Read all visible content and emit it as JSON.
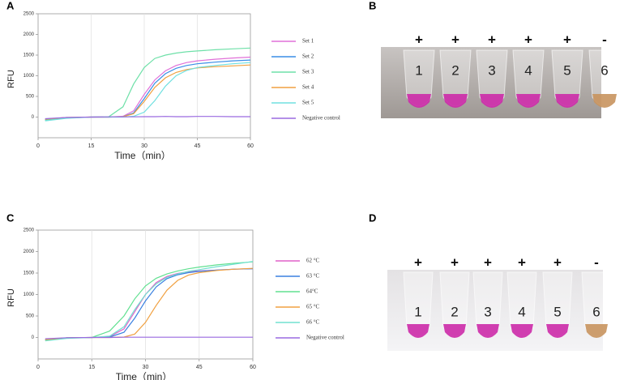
{
  "panel_labels": [
    "A",
    "B",
    "C",
    "D"
  ],
  "chart_data": [
    {
      "type": "line",
      "x_label": "Time（min）",
      "y_label": "RFU",
      "xlim": [
        0,
        60
      ],
      "xticks": [
        0,
        15,
        30,
        45,
        60
      ],
      "ylim": [
        -500,
        2500
      ],
      "yticks": [
        0,
        500,
        1000,
        1500,
        2000,
        2500
      ],
      "grid": "x",
      "x": [
        2,
        8,
        15,
        20,
        24,
        27,
        30,
        33,
        36,
        39,
        42,
        45,
        50,
        55,
        60
      ],
      "series": [
        {
          "name": "Set 1",
          "color": "#e070d8",
          "values": [
            -60,
            -10,
            0,
            0,
            20,
            150,
            550,
            900,
            1120,
            1250,
            1320,
            1360,
            1400,
            1430,
            1450
          ]
        },
        {
          "name": "Set 2",
          "color": "#3a8ee6",
          "values": [
            -70,
            -20,
            0,
            0,
            10,
            100,
            450,
            820,
            1050,
            1180,
            1250,
            1290,
            1330,
            1360,
            1380
          ]
        },
        {
          "name": "Set 3",
          "color": "#6ee0a8",
          "values": [
            -80,
            -20,
            0,
            10,
            250,
            800,
            1200,
            1420,
            1500,
            1550,
            1580,
            1600,
            1630,
            1650,
            1670
          ]
        },
        {
          "name": "Set 4",
          "color": "#f0a040",
          "values": [
            -50,
            -10,
            0,
            0,
            10,
            80,
            380,
            720,
            950,
            1080,
            1150,
            1190,
            1220,
            1240,
            1260
          ]
        },
        {
          "name": "Set 5",
          "color": "#70e0e0",
          "values": [
            -90,
            -30,
            0,
            0,
            0,
            20,
            120,
            400,
            750,
            1000,
            1130,
            1200,
            1250,
            1290,
            1320
          ]
        },
        {
          "name": "Negative control",
          "color": "#9a6ae0",
          "values": [
            -40,
            -10,
            0,
            5,
            5,
            5,
            10,
            10,
            15,
            10,
            10,
            15,
            15,
            10,
            10
          ]
        }
      ]
    },
    {
      "type": "line",
      "x_label": "Time（min）",
      "y_label": "RFU",
      "xlim": [
        0,
        60
      ],
      "xticks": [
        0,
        15,
        30,
        45,
        60
      ],
      "ylim": [
        -500,
        2500
      ],
      "yticks": [
        0,
        500,
        1000,
        1500,
        2000,
        2500
      ],
      "grid": "x",
      "x": [
        2,
        8,
        15,
        20,
        24,
        27,
        30,
        33,
        36,
        39,
        42,
        45,
        50,
        55,
        60
      ],
      "series": [
        {
          "name": "62 °C",
          "color": "#e060c8",
          "values": [
            -50,
            -10,
            0,
            20,
            200,
            600,
            1000,
            1280,
            1420,
            1490,
            1530,
            1550,
            1570,
            1590,
            1600
          ]
        },
        {
          "name": "63 °C",
          "color": "#3a80e0",
          "values": [
            -60,
            -10,
            0,
            10,
            120,
            450,
            850,
            1180,
            1370,
            1460,
            1510,
            1540,
            1570,
            1590,
            1600
          ]
        },
        {
          "name": "64°C",
          "color": "#60e090",
          "values": [
            -60,
            -10,
            0,
            150,
            500,
            900,
            1200,
            1380,
            1480,
            1550,
            1600,
            1640,
            1690,
            1730,
            1760
          ]
        },
        {
          "name": "65 °C",
          "color": "#f0a040",
          "values": [
            -50,
            -10,
            0,
            0,
            10,
            80,
            350,
            750,
            1100,
            1330,
            1450,
            1510,
            1560,
            1590,
            1610
          ]
        },
        {
          "name": "66 °C",
          "color": "#70e0d0",
          "values": [
            -80,
            -20,
            0,
            30,
            250,
            650,
            1000,
            1250,
            1400,
            1480,
            1540,
            1580,
            1650,
            1710,
            1770
          ]
        },
        {
          "name": "Negative control",
          "color": "#9a6ae0",
          "values": [
            -30,
            -5,
            0,
            0,
            5,
            5,
            5,
            5,
            5,
            5,
            5,
            5,
            5,
            5,
            5
          ]
        }
      ]
    }
  ],
  "photos": [
    {
      "signs": [
        "+",
        "+",
        "+",
        "+",
        "+",
        "-"
      ],
      "tubes": [
        "1",
        "2",
        "3",
        "4",
        "5",
        "6"
      ]
    },
    {
      "signs": [
        "+",
        "+",
        "+",
        "+",
        "+",
        "-"
      ],
      "tubes": [
        "1",
        "2",
        "3",
        "4",
        "5",
        "6"
      ]
    }
  ]
}
